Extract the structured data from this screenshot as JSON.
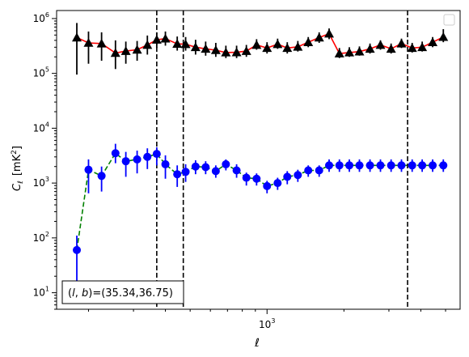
{
  "chart_data": {
    "type": "scatter",
    "xlabel": "ℓ",
    "ylabel_main": "C",
    "ylabel_sub": "ℓ",
    "ylabel_unit": "[mK",
    "ylabel_unit_sup": "2",
    "ylabel_unit_close": "]",
    "x_scale": "log",
    "y_scale": "log",
    "xlim": [
      150,
      5700
    ],
    "ylim": [
      5,
      1400000
    ],
    "x_tick_label": {
      "value": 1000,
      "base": "10",
      "exp": "3"
    },
    "y_tick_labels": [
      {
        "value": 10,
        "base": "10",
        "exp": "1"
      },
      {
        "value": 100,
        "base": "10",
        "exp": "2"
      },
      {
        "value": 1000,
        "base": "10",
        "exp": "3"
      },
      {
        "value": 10000,
        "base": "10",
        "exp": "4"
      },
      {
        "value": 100000,
        "base": "10",
        "exp": "5"
      },
      {
        "value": 1000000,
        "base": "10",
        "exp": "6"
      }
    ],
    "annotation": {
      "l_sym": "l",
      "b_sym": "b",
      "value": "=(35.34,36.75)"
    },
    "legend": "top-right (empty)",
    "grid": false,
    "vlines": [
      370,
      470,
      3550
    ],
    "series": [
      {
        "line_color": "#ff0000",
        "line_style": "solid",
        "marker": "triangle",
        "marker_color": "#000000",
        "errbar_color": "#000000",
        "x": [
          180,
          200,
          225,
          255,
          280,
          310,
          340,
          370,
          400,
          445,
          480,
          525,
          575,
          630,
          690,
          760,
          830,
          910,
          1000,
          1100,
          1200,
          1320,
          1450,
          1600,
          1750,
          1920,
          2100,
          2300,
          2530,
          2780,
          3060,
          3360,
          3700,
          4050,
          4450,
          4900
        ],
        "y": [
          450000,
          360000,
          350000,
          235000,
          255000,
          270000,
          330000,
          410000,
          430000,
          345000,
          340000,
          300000,
          280000,
          265000,
          240000,
          242000,
          255000,
          330000,
          290000,
          340000,
          290000,
          305000,
          370000,
          450000,
          530000,
          230000,
          240000,
          250000,
          280000,
          330000,
          280000,
          350000,
          290000,
          300000,
          370000,
          460000
        ],
        "y_err_low": [
          95000,
          150000,
          170000,
          120000,
          150000,
          170000,
          220000,
          290000,
          320000,
          260000,
          260000,
          220000,
          210000,
          200000,
          190000,
          190000,
          200000,
          270000,
          230000,
          280000,
          230000,
          250000,
          300000,
          360000,
          420000,
          190000,
          200000,
          210000,
          230000,
          270000,
          230000,
          290000,
          240000,
          250000,
          300000,
          370000
        ],
        "y_err_high": [
          830000,
          580000,
          560000,
          400000,
          380000,
          390000,
          490000,
          560000,
          580000,
          470000,
          460000,
          410000,
          380000,
          360000,
          320000,
          320000,
          330000,
          420000,
          370000,
          430000,
          370000,
          390000,
          460000,
          560000,
          660000,
          290000,
          300000,
          310000,
          350000,
          400000,
          350000,
          430000,
          360000,
          380000,
          460000,
          640000
        ]
      },
      {
        "line_color": "#008000",
        "line_style": "dashed",
        "marker": "circle",
        "marker_color": "#0000ff",
        "errbar_color": "#0000ff",
        "x": [
          180,
          200,
          225,
          255,
          280,
          310,
          340,
          370,
          400,
          445,
          480,
          525,
          575,
          630,
          690,
          760,
          830,
          910,
          1000,
          1100,
          1200,
          1320,
          1450,
          1600,
          1750,
          1920,
          2100,
          2300,
          2530,
          2780,
          3060,
          3360,
          3700,
          4050,
          4450,
          4900
        ],
        "y": [
          60,
          1750,
          1350,
          3500,
          2500,
          2700,
          3000,
          3400,
          2200,
          1450,
          1600,
          2000,
          1950,
          1650,
          2200,
          1700,
          1250,
          1200,
          880,
          1000,
          1300,
          1400,
          1700,
          1700,
          2100,
          2100,
          2100,
          2100,
          2100,
          2100,
          2100,
          2100,
          2100,
          2100,
          2100,
          2100
        ],
        "y_err_low": [
          12,
          650,
          700,
          2300,
          1300,
          1500,
          1800,
          2100,
          1200,
          850,
          1050,
          1450,
          1450,
          1250,
          1700,
          1250,
          900,
          900,
          650,
          750,
          950,
          1050,
          1300,
          1300,
          1600,
          1600,
          1600,
          1600,
          1600,
          1600,
          1600,
          1600,
          1600,
          1600,
          1600,
          1600
        ],
        "y_err_high": [
          110,
          2700,
          2000,
          5200,
          3700,
          3900,
          4300,
          4500,
          3200,
          2100,
          2200,
          2600,
          2500,
          2100,
          2700,
          2200,
          1550,
          1500,
          1100,
          1250,
          1650,
          1750,
          2100,
          2100,
          2700,
          2700,
          2700,
          2700,
          2700,
          2700,
          2700,
          2700,
          2700,
          2700,
          2700,
          2700
        ]
      }
    ]
  }
}
